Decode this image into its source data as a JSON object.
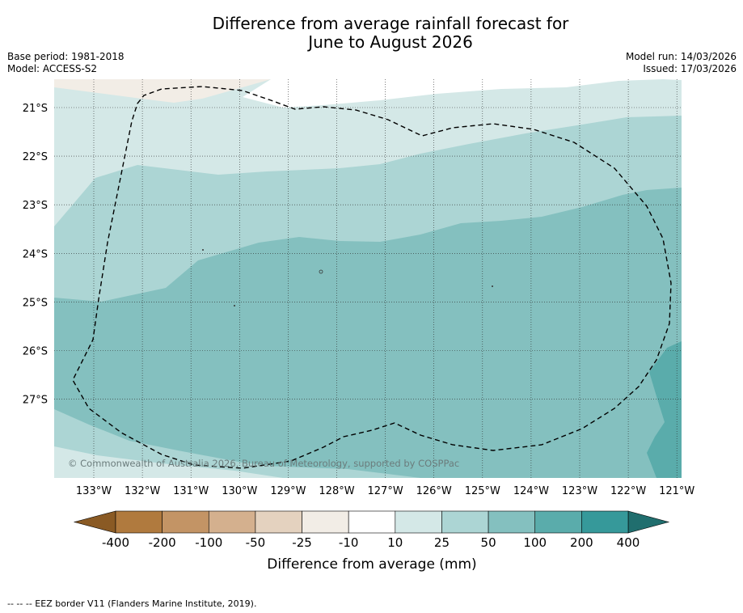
{
  "header": {
    "title_line1": "Difference from average rainfall forecast for",
    "title_line2": "June to August 2026",
    "base_period": "Base period: 1981-2018",
    "model": "Model: ACCESS-S2",
    "model_run": "Model run: 14/03/2026",
    "issued": "Issued: 17/03/2026"
  },
  "chart_data": {
    "type": "contour-map",
    "title": "Difference from average rainfall forecast for June to August 2026",
    "units": "mm",
    "xlim": [
      -133.8,
      -120.9
    ],
    "ylim": [
      -28.9,
      -20.6
    ],
    "x_ticks": [
      -133,
      -132,
      -131,
      -130,
      -129,
      -128,
      -127,
      -126,
      -125,
      -124,
      -123,
      -122,
      -121
    ],
    "x_tick_labels": [
      "133°W",
      "132°W",
      "131°W",
      "130°W",
      "129°W",
      "128°W",
      "127°W",
      "126°W",
      "125°W",
      "124°W",
      "123°W",
      "122°W",
      "121°W"
    ],
    "y_ticks": [
      -21,
      -22,
      -23,
      -24,
      -25,
      -26,
      -27
    ],
    "y_tick_labels": [
      "21°S",
      "22°S",
      "23°S",
      "24°S",
      "25°S",
      "26°S",
      "27°S"
    ],
    "bands": [
      {
        "range": "-25 to -10",
        "color": "#f2ede6",
        "location": "northwest corner"
      },
      {
        "range": "10 to 25",
        "color": "#d4e8e7",
        "location": "north"
      },
      {
        "range": "25 to 50",
        "color": "#acd5d4",
        "location": "north-central band and southwest edge"
      },
      {
        "range": "50 to 100",
        "color": "#84c0bf",
        "location": "central and south"
      },
      {
        "range": "100 to 200",
        "color": "#5aacab",
        "location": "southeast corner"
      }
    ],
    "colorbar": {
      "label": "Difference from average (mm)",
      "ticks": [
        "-400",
        "-200",
        "-100",
        "-50",
        "-25",
        "-10",
        "10",
        "25",
        "50",
        "100",
        "200",
        "400"
      ],
      "colors": [
        "#b07a3e",
        "#c39465",
        "#d4b08e",
        "#e4d2bf",
        "#f2ede6",
        "#ffffff",
        "#d4e8e7",
        "#acd5d4",
        "#84c0bf",
        "#5aacab",
        "#36999a"
      ],
      "extend_low": "#8a5a24",
      "extend_high": "#206e6e"
    },
    "eez_border": "dashed",
    "copyright": "© Commonwealth of Australia 2026, Bureau of Meteorology, supported by COSPPac"
  },
  "footer": {
    "eez_legend": "--  --  -- EEZ border V11 (Flanders Marine Institute, 2019)."
  }
}
